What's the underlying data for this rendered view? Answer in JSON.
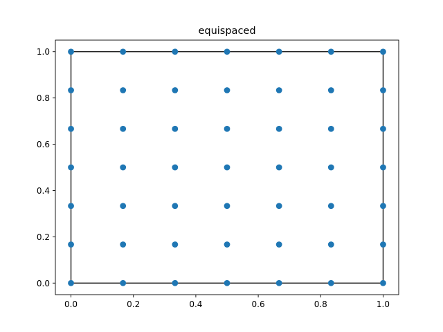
{
  "chart_data": {
    "type": "scatter",
    "title": "equispaced",
    "xlabel": "",
    "ylabel": "",
    "xlim": [
      -0.05,
      1.05
    ],
    "ylim": [
      -0.05,
      1.05
    ],
    "grid": false,
    "xticks": [
      0.0,
      0.2,
      0.4,
      0.6,
      0.8,
      1.0
    ],
    "yticks": [
      0.0,
      0.2,
      0.4,
      0.6,
      0.8,
      1.0
    ],
    "xtick_labels": [
      "0.0",
      "0.2",
      "0.4",
      "0.6",
      "0.8",
      "1.0"
    ],
    "ytick_labels": [
      "0.0",
      "0.2",
      "0.4",
      "0.6",
      "0.8",
      "1.0"
    ],
    "series": [
      {
        "color": "#1f77b4",
        "x": [
          0,
          0.1667,
          0.3333,
          0.5,
          0.6667,
          0.8333,
          1,
          0,
          0.1667,
          0.3333,
          0.5,
          0.6667,
          0.8333,
          1,
          0,
          0.1667,
          0.3333,
          0.5,
          0.6667,
          0.8333,
          1,
          0,
          0.1667,
          0.3333,
          0.5,
          0.6667,
          0.8333,
          1,
          0,
          0.1667,
          0.3333,
          0.5,
          0.6667,
          0.8333,
          1,
          0,
          0.1667,
          0.3333,
          0.5,
          0.6667,
          0.8333,
          1,
          0,
          0.1667,
          0.3333,
          0.5,
          0.6667,
          0.8333,
          1
        ],
        "y": [
          0,
          0,
          0,
          0,
          0,
          0,
          0,
          0.1667,
          0.1667,
          0.1667,
          0.1667,
          0.1667,
          0.1667,
          0.1667,
          0.3333,
          0.3333,
          0.3333,
          0.3333,
          0.3333,
          0.3333,
          0.3333,
          0.5,
          0.5,
          0.5,
          0.5,
          0.5,
          0.5,
          0.5,
          0.6667,
          0.6667,
          0.6667,
          0.6667,
          0.6667,
          0.6667,
          0.6667,
          0.8333,
          0.8333,
          0.8333,
          0.8333,
          0.8333,
          0.8333,
          0.8333,
          1,
          1,
          1,
          1,
          1,
          1,
          1
        ]
      }
    ],
    "outline": {
      "color": "#000000",
      "x": [
        0,
        1,
        1,
        0,
        0
      ],
      "y": [
        0,
        0,
        1,
        1,
        0
      ]
    }
  }
}
